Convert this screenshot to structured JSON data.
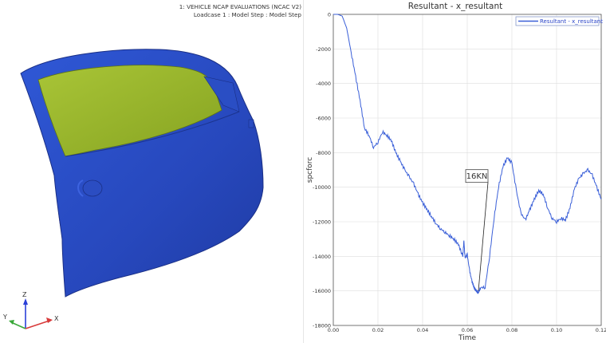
{
  "model_view": {
    "header_line1": "1: VEHICLE NCAP EVALUATIONS (NCAC V2)",
    "header_line2": "Loadcase 1 : Model Step : Model Step",
    "triad": {
      "z_label": "Z",
      "y_label": "Y",
      "x_label": "X"
    },
    "colors": {
      "door_panel": "#2a50c8",
      "window_glass": "#98b62a",
      "inner_red": "#c8382a",
      "inner_tan": "#d6c48a"
    }
  },
  "chart_data": {
    "type": "line",
    "title": "Resultant - x_resultant",
    "xlabel": "Time",
    "ylabel": "spcforc",
    "xlim": [
      0,
      0.12
    ],
    "ylim": [
      -18000,
      0
    ],
    "x_ticks": [
      "0.00",
      "0.02",
      "0.04",
      "0.06",
      "0.08",
      "0.10",
      "0.12"
    ],
    "y_ticks": [
      "0",
      "-2000",
      "-4000",
      "-6000",
      "-8000",
      "-10000",
      "-12000",
      "-14000",
      "-16000",
      "-18000"
    ],
    "grid": true,
    "legend_position": "top-right",
    "annotation": {
      "text": "16KN",
      "x": 0.065,
      "y": -16000
    },
    "series": [
      {
        "name": "Resultant - x_resultant",
        "color": "#3a5fd8",
        "points": [
          [
            0.0,
            0
          ],
          [
            0.002,
            0
          ],
          [
            0.004,
            -100
          ],
          [
            0.006,
            -800
          ],
          [
            0.008,
            -2200
          ],
          [
            0.01,
            -3600
          ],
          [
            0.012,
            -5000
          ],
          [
            0.014,
            -6600
          ],
          [
            0.016,
            -7000
          ],
          [
            0.018,
            -7700
          ],
          [
            0.02,
            -7400
          ],
          [
            0.022,
            -6800
          ],
          [
            0.024,
            -7000
          ],
          [
            0.026,
            -7300
          ],
          [
            0.028,
            -8000
          ],
          [
            0.03,
            -8500
          ],
          [
            0.032,
            -9000
          ],
          [
            0.034,
            -9400
          ],
          [
            0.036,
            -9800
          ],
          [
            0.038,
            -10400
          ],
          [
            0.04,
            -10900
          ],
          [
            0.042,
            -11300
          ],
          [
            0.044,
            -11700
          ],
          [
            0.046,
            -12100
          ],
          [
            0.048,
            -12400
          ],
          [
            0.05,
            -12600
          ],
          [
            0.052,
            -12800
          ],
          [
            0.054,
            -13000
          ],
          [
            0.056,
            -13300
          ],
          [
            0.058,
            -14000
          ],
          [
            0.0585,
            -13100
          ],
          [
            0.059,
            -14100
          ],
          [
            0.06,
            -13900
          ],
          [
            0.061,
            -14800
          ],
          [
            0.062,
            -15400
          ],
          [
            0.063,
            -15800
          ],
          [
            0.064,
            -16000
          ],
          [
            0.065,
            -16100
          ],
          [
            0.066,
            -15800
          ],
          [
            0.068,
            -15800
          ],
          [
            0.07,
            -14000
          ],
          [
            0.072,
            -11800
          ],
          [
            0.074,
            -10000
          ],
          [
            0.076,
            -8800
          ],
          [
            0.078,
            -8300
          ],
          [
            0.08,
            -8600
          ],
          [
            0.082,
            -10200
          ],
          [
            0.084,
            -11500
          ],
          [
            0.086,
            -11900
          ],
          [
            0.088,
            -11300
          ],
          [
            0.09,
            -10700
          ],
          [
            0.092,
            -10200
          ],
          [
            0.094,
            -10400
          ],
          [
            0.096,
            -11200
          ],
          [
            0.098,
            -11800
          ],
          [
            0.1,
            -12000
          ],
          [
            0.102,
            -11800
          ],
          [
            0.104,
            -11900
          ],
          [
            0.106,
            -11200
          ],
          [
            0.108,
            -10100
          ],
          [
            0.11,
            -9500
          ],
          [
            0.112,
            -9200
          ],
          [
            0.114,
            -9000
          ],
          [
            0.116,
            -9300
          ],
          [
            0.118,
            -10000
          ],
          [
            0.12,
            -10700
          ]
        ]
      }
    ]
  }
}
